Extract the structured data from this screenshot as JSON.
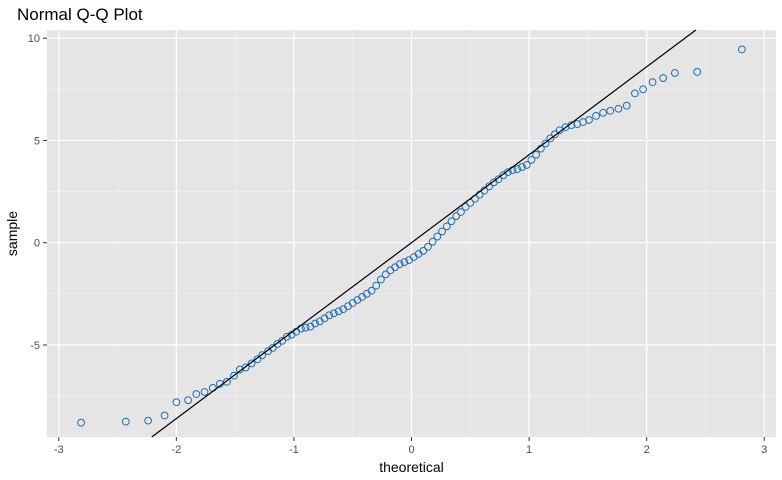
{
  "chart_data": {
    "type": "scatter",
    "title": "Normal Q-Q Plot",
    "xlabel": "theoretical",
    "ylabel": "sample",
    "xlim": [
      -3.1,
      3.1
    ],
    "ylim": [
      -9.5,
      10.4
    ],
    "x_ticks": [
      -3,
      -2,
      -1,
      0,
      1,
      2,
      3
    ],
    "x_tick_labels": [
      "-3",
      "-2",
      "-1",
      "0",
      "1",
      "2",
      "3"
    ],
    "y_ticks": [
      -5,
      0,
      5,
      10
    ],
    "y_tick_labels": [
      "-5",
      "0",
      "5",
      "10"
    ],
    "grid": true,
    "reference_line": {
      "intercept": 0.0,
      "slope": 4.3
    },
    "series": [
      {
        "values": [
          [
            -2.81,
            -8.8
          ],
          [
            -2.43,
            -8.75
          ],
          [
            -2.24,
            -8.7
          ],
          [
            -2.1,
            -8.45
          ],
          [
            -2.0,
            -7.8
          ],
          [
            -1.9,
            -7.7
          ],
          [
            -1.83,
            -7.4
          ],
          [
            -1.76,
            -7.3
          ],
          [
            -1.69,
            -7.1
          ],
          [
            -1.63,
            -6.9
          ],
          [
            -1.57,
            -6.8
          ],
          [
            -1.51,
            -6.5
          ],
          [
            -1.46,
            -6.2
          ],
          [
            -1.41,
            -6.1
          ],
          [
            -1.36,
            -5.9
          ],
          [
            -1.31,
            -5.7
          ],
          [
            -1.27,
            -5.5
          ],
          [
            -1.22,
            -5.3
          ],
          [
            -1.18,
            -5.15
          ],
          [
            -1.14,
            -4.95
          ],
          [
            -1.1,
            -4.8
          ],
          [
            -1.06,
            -4.6
          ],
          [
            -1.02,
            -4.5
          ],
          [
            -0.98,
            -4.35
          ],
          [
            -0.94,
            -4.2
          ],
          [
            -0.9,
            -4.15
          ],
          [
            -0.86,
            -4.1
          ],
          [
            -0.82,
            -3.95
          ],
          [
            -0.78,
            -3.85
          ],
          [
            -0.74,
            -3.7
          ],
          [
            -0.7,
            -3.55
          ],
          [
            -0.66,
            -3.45
          ],
          [
            -0.62,
            -3.35
          ],
          [
            -0.58,
            -3.25
          ],
          [
            -0.54,
            -3.1
          ],
          [
            -0.5,
            -2.95
          ],
          [
            -0.46,
            -2.8
          ],
          [
            -0.42,
            -2.65
          ],
          [
            -0.38,
            -2.5
          ],
          [
            -0.34,
            -2.35
          ],
          [
            -0.3,
            -2.1
          ],
          [
            -0.26,
            -1.8
          ],
          [
            -0.22,
            -1.55
          ],
          [
            -0.18,
            -1.35
          ],
          [
            -0.14,
            -1.2
          ],
          [
            -0.1,
            -1.05
          ],
          [
            -0.06,
            -0.95
          ],
          [
            -0.02,
            -0.85
          ],
          [
            0.02,
            -0.7
          ],
          [
            0.06,
            -0.55
          ],
          [
            0.1,
            -0.4
          ],
          [
            0.14,
            -0.2
          ],
          [
            0.18,
            0.05
          ],
          [
            0.22,
            0.3
          ],
          [
            0.26,
            0.55
          ],
          [
            0.3,
            0.8
          ],
          [
            0.34,
            1.05
          ],
          [
            0.38,
            1.3
          ],
          [
            0.42,
            1.5
          ],
          [
            0.46,
            1.75
          ],
          [
            0.5,
            1.95
          ],
          [
            0.54,
            2.15
          ],
          [
            0.58,
            2.35
          ],
          [
            0.62,
            2.55
          ],
          [
            0.66,
            2.75
          ],
          [
            0.7,
            2.95
          ],
          [
            0.74,
            3.1
          ],
          [
            0.78,
            3.3
          ],
          [
            0.82,
            3.45
          ],
          [
            0.86,
            3.55
          ],
          [
            0.9,
            3.6
          ],
          [
            0.94,
            3.7
          ],
          [
            0.98,
            3.8
          ],
          [
            1.02,
            4.05
          ],
          [
            1.06,
            4.3
          ],
          [
            1.1,
            4.6
          ],
          [
            1.14,
            4.85
          ],
          [
            1.18,
            5.1
          ],
          [
            1.22,
            5.3
          ],
          [
            1.26,
            5.5
          ],
          [
            1.31,
            5.65
          ],
          [
            1.36,
            5.75
          ],
          [
            1.41,
            5.8
          ],
          [
            1.46,
            5.9
          ],
          [
            1.51,
            6.0
          ],
          [
            1.57,
            6.2
          ],
          [
            1.63,
            6.35
          ],
          [
            1.69,
            6.45
          ],
          [
            1.76,
            6.55
          ],
          [
            1.83,
            6.7
          ],
          [
            1.9,
            7.3
          ],
          [
            1.97,
            7.5
          ],
          [
            2.05,
            7.85
          ],
          [
            2.14,
            8.05
          ],
          [
            2.24,
            8.3
          ],
          [
            2.43,
            8.35
          ],
          [
            2.81,
            9.45
          ]
        ]
      }
    ]
  }
}
